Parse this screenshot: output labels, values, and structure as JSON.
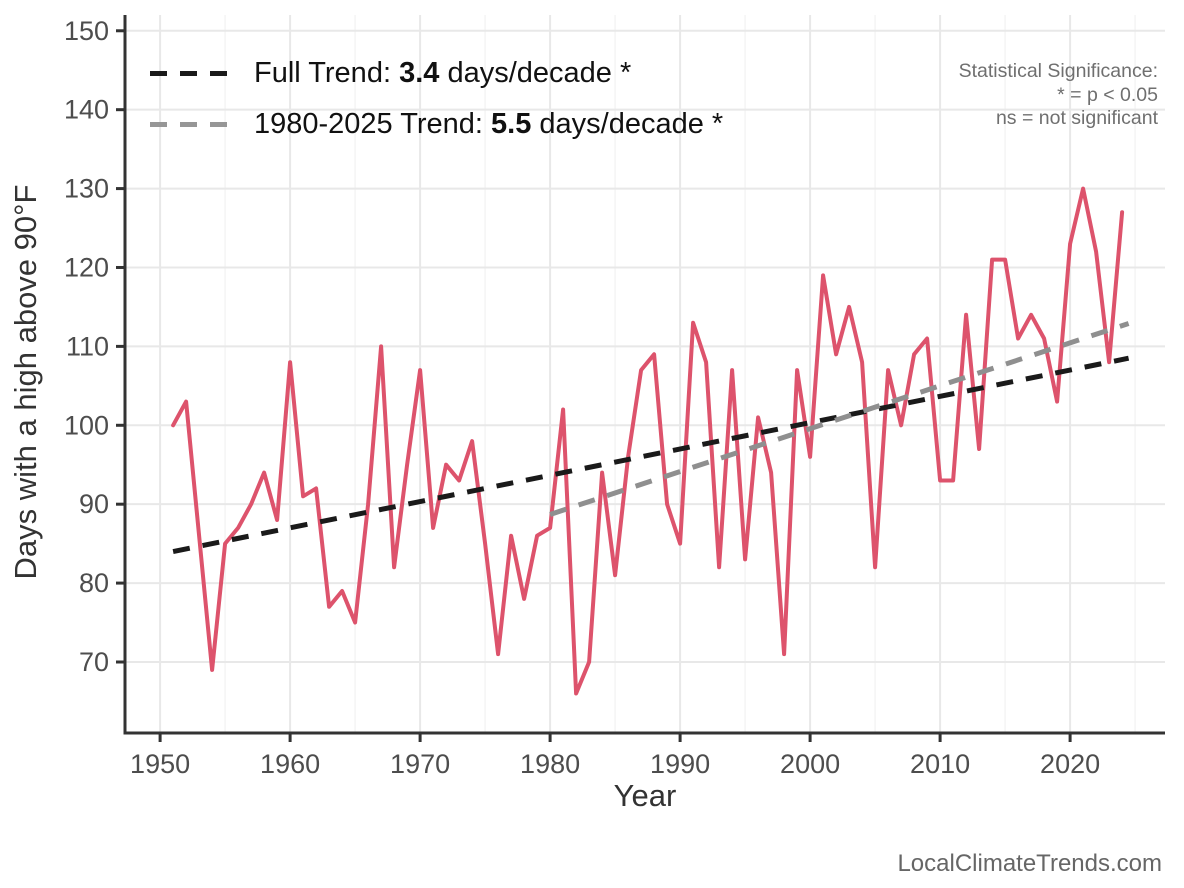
{
  "page": {
    "background": "#ffffff"
  },
  "legend": {
    "items": [
      {
        "prefix": "Full Trend: ",
        "value": "3.4",
        "suffix": " days/decade *",
        "color": "#1a1a1a"
      },
      {
        "prefix": "1980-2025 Trend: ",
        "value": "5.5",
        "suffix": " days/decade *",
        "color": "#969696"
      }
    ]
  },
  "annotation": {
    "line1": "Statistical Significance:",
    "line2": "* = p < 0.05",
    "line3": "ns = not significant"
  },
  "watermark": "LocalClimateTrends.com",
  "chart_data": {
    "type": "line",
    "title": "",
    "xlabel": "Year",
    "ylabel": "Days with a high above 90°F",
    "xlim": [
      1947.3,
      2027.3
    ],
    "ylim": [
      61,
      152
    ],
    "x_ticks": [
      1950,
      1960,
      1970,
      1980,
      1990,
      2000,
      2010,
      2020
    ],
    "x_minor_ticks": [
      1955,
      1965,
      1975,
      1985,
      1995,
      2005,
      2015,
      2025
    ],
    "y_ticks": [
      70,
      80,
      90,
      100,
      110,
      120,
      130,
      140,
      150
    ],
    "grid": true,
    "legend_position": "top-left",
    "series": [
      {
        "name": "Days with a high above 90F",
        "color": "#DD536C",
        "years": [
          1951,
          1952,
          1953,
          1954,
          1955,
          1956,
          1957,
          1958,
          1959,
          1960,
          1961,
          1962,
          1963,
          1964,
          1965,
          1966,
          1967,
          1968,
          1969,
          1970,
          1971,
          1972,
          1973,
          1974,
          1975,
          1976,
          1977,
          1978,
          1979,
          1980,
          1981,
          1982,
          1983,
          1984,
          1985,
          1986,
          1987,
          1988,
          1989,
          1990,
          1991,
          1992,
          1993,
          1994,
          1995,
          1996,
          1997,
          1998,
          1999,
          2000,
          2001,
          2002,
          2003,
          2004,
          2005,
          2006,
          2007,
          2008,
          2009,
          2010,
          2011,
          2012,
          2013,
          2014,
          2015,
          2016,
          2017,
          2018,
          2019,
          2020,
          2021,
          2022,
          2023,
          2024
        ],
        "values": [
          100,
          103,
          86,
          69,
          85,
          87,
          90,
          94,
          88,
          108,
          91,
          92,
          77,
          79,
          75,
          90,
          110,
          82,
          95,
          107,
          87,
          95,
          93,
          98,
          85,
          71,
          86,
          78,
          86,
          87,
          102,
          66,
          70,
          94,
          81,
          96,
          107,
          109,
          90,
          85,
          113,
          108,
          82,
          107,
          83,
          101,
          94,
          71,
          107,
          96,
          119,
          109,
          115,
          108,
          82,
          107,
          100,
          109,
          111,
          93,
          93,
          114,
          97,
          121,
          121,
          111,
          114,
          111,
          103,
          123,
          130,
          122,
          108,
          127
        ]
      }
    ],
    "trend_lines": [
      {
        "name": "Full Trend",
        "rate_per_decade": 3.4,
        "significant": true,
        "color": "#1a1a1a",
        "x1": 1951,
        "y1": 84.0,
        "x2": 2024.5,
        "y2": 108.5
      },
      {
        "name": "1980-2025 Trend",
        "rate_per_decade": 5.5,
        "significant": true,
        "color": "#8f8f8f",
        "x1": 1980,
        "y1": 88.7,
        "x2": 2024.5,
        "y2": 112.9
      }
    ],
    "style": {
      "grid_major_color": "#e8e8e8",
      "grid_minor_color": "#f4f4f4",
      "axis_color": "#333333",
      "tick_label_color": "#4d4d4d",
      "axis_title_color": "#333333"
    }
  }
}
